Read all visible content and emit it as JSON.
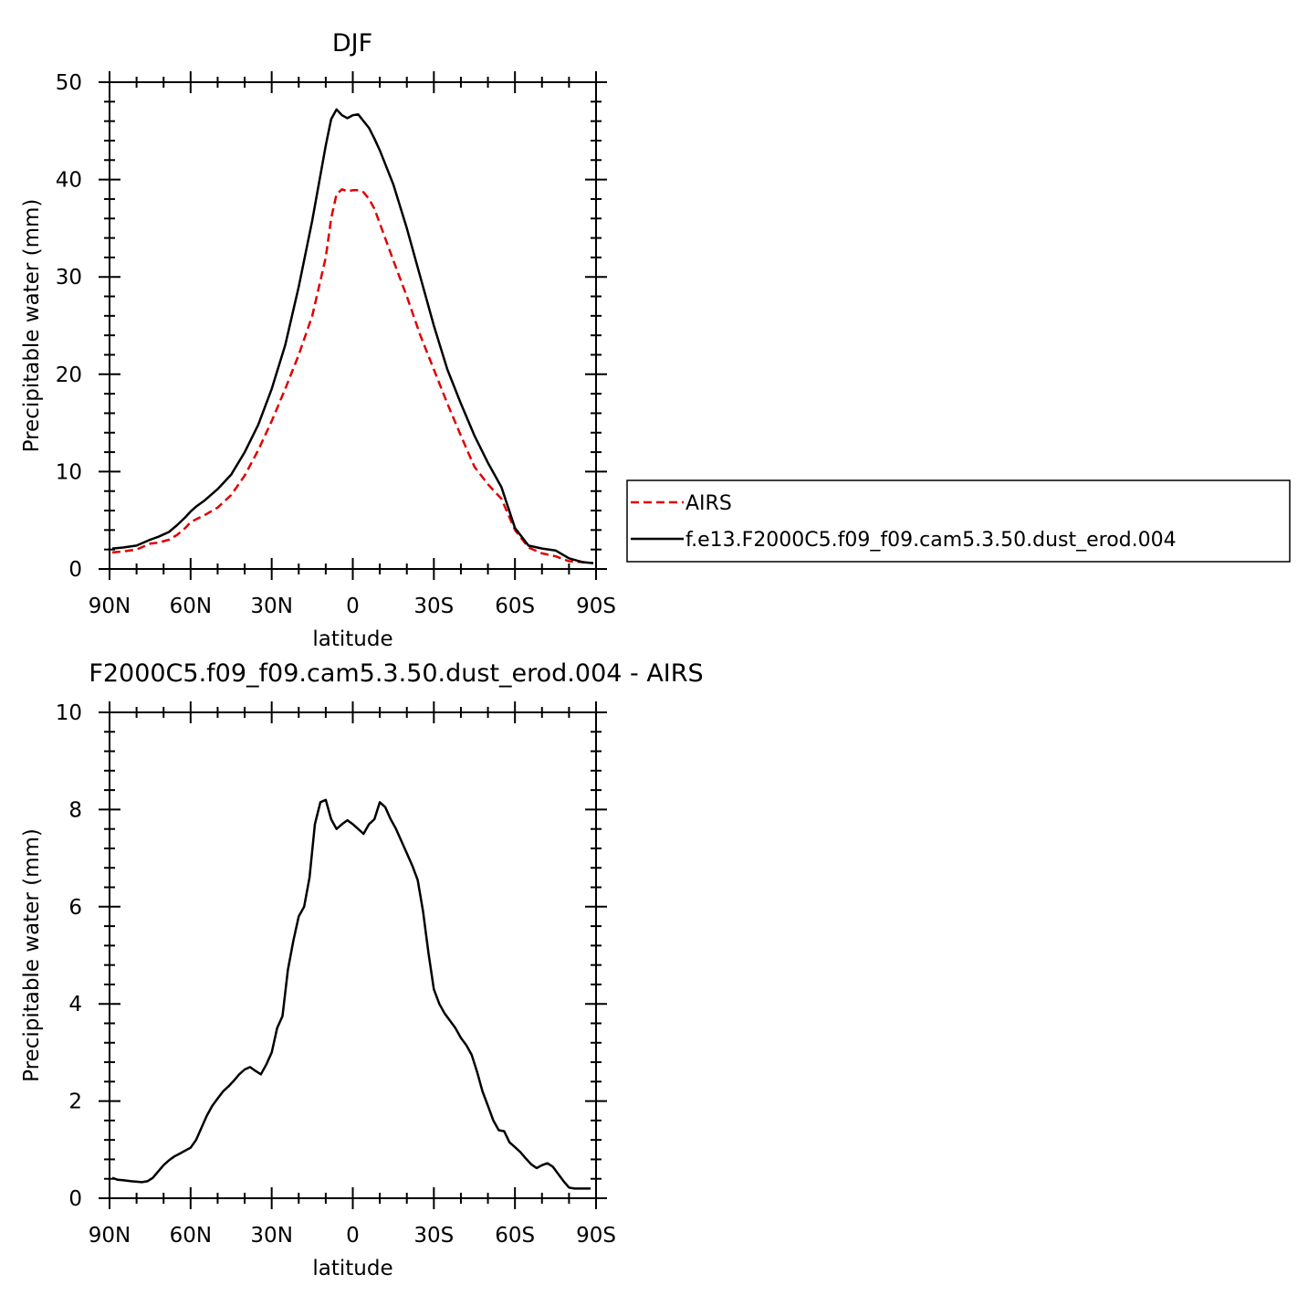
{
  "chart_data": [
    {
      "type": "line",
      "title": "DJF",
      "xlabel": "latitude",
      "ylabel": "Precipitable water (mm)",
      "xlim": [
        -90,
        90
      ],
      "ylim": [
        0,
        50
      ],
      "x_ticks": [
        -90,
        -60,
        -30,
        0,
        30,
        60,
        90
      ],
      "x_tick_labels": [
        "90N",
        "60N",
        "30N",
        "0",
        "30S",
        "60S",
        "90S"
      ],
      "y_ticks": [
        0,
        10,
        20,
        30,
        40,
        50
      ],
      "y_tick_labels": [
        "0",
        "10",
        "20",
        "30",
        "40",
        "50"
      ],
      "legend": {
        "placement": "right",
        "entries": [
          {
            "series": "AIRS",
            "label": "AIRS",
            "color": "#e00000",
            "dash": true
          },
          {
            "series": "model",
            "label": "f.e13.F2000C5.f09_f09.cam5.3.50.dust_erod.004",
            "color": "#000000",
            "dash": false
          }
        ]
      },
      "series": [
        {
          "name": "AIRS",
          "color": "#e00000",
          "dash": true,
          "x": [
            -89,
            -85,
            -80,
            -75,
            -72,
            -68,
            -65,
            -62,
            -60,
            -58,
            -55,
            -50,
            -45,
            -40,
            -35,
            -30,
            -25,
            -20,
            -15,
            -10,
            -8,
            -6,
            -4,
            -2,
            0,
            2,
            4,
            6,
            8,
            10,
            15,
            20,
            25,
            30,
            35,
            40,
            45,
            50,
            55,
            60,
            65,
            70,
            75,
            80,
            85,
            89
          ],
          "values": [
            1.7,
            1.8,
            2.0,
            2.6,
            2.7,
            3.0,
            3.5,
            4.2,
            4.8,
            5.1,
            5.5,
            6.3,
            7.6,
            9.6,
            12.2,
            15.2,
            18.5,
            22.0,
            26.0,
            32.0,
            36.0,
            38.5,
            39.0,
            38.8,
            38.9,
            38.9,
            38.7,
            38.0,
            37.0,
            35.5,
            31.7,
            28.0,
            24.0,
            20.5,
            17.0,
            13.7,
            10.5,
            8.7,
            7.2,
            4.0,
            2.2,
            1.6,
            1.3,
            0.8,
            0.7,
            0.6
          ]
        },
        {
          "name": "f.e13.F2000C5.f09_f09.cam5.3.50.dust_erod.004",
          "color": "#000000",
          "dash": false,
          "x": [
            -89,
            -85,
            -80,
            -75,
            -72,
            -68,
            -65,
            -62,
            -60,
            -58,
            -55,
            -50,
            -45,
            -40,
            -35,
            -30,
            -25,
            -20,
            -15,
            -10,
            -8,
            -6,
            -4,
            -2,
            0,
            2,
            4,
            6,
            8,
            10,
            15,
            20,
            25,
            30,
            35,
            40,
            45,
            50,
            55,
            60,
            65,
            70,
            75,
            80,
            85,
            89
          ],
          "values": [
            2.1,
            2.2,
            2.4,
            3.0,
            3.3,
            3.8,
            4.5,
            5.3,
            5.9,
            6.4,
            7.0,
            8.2,
            9.7,
            12.0,
            14.8,
            18.5,
            23.0,
            29.0,
            35.8,
            43.5,
            46.2,
            47.2,
            46.6,
            46.3,
            46.6,
            46.7,
            46.0,
            45.3,
            44.2,
            43.0,
            39.5,
            35.0,
            30.0,
            25.0,
            20.5,
            17.0,
            13.7,
            10.9,
            8.4,
            4.2,
            2.4,
            2.1,
            1.9,
            1.1,
            0.7,
            0.6
          ]
        }
      ]
    },
    {
      "type": "line",
      "title": "F2000C5.f09_f09.cam5.3.50.dust_erod.004 - AIRS",
      "xlabel": "latitude",
      "ylabel": "Precipitable water (mm)",
      "xlim": [
        -90,
        90
      ],
      "ylim": [
        0,
        10
      ],
      "x_ticks": [
        -90,
        -60,
        -30,
        0,
        30,
        60,
        90
      ],
      "x_tick_labels": [
        "90N",
        "60N",
        "30N",
        "0",
        "30S",
        "60S",
        "90S"
      ],
      "y_ticks": [
        0,
        2,
        4,
        6,
        8,
        10
      ],
      "y_tick_labels": [
        "0",
        "2",
        "4",
        "6",
        "8",
        "10"
      ],
      "series": [
        {
          "name": "difference",
          "color": "#000000",
          "dash": false,
          "x": [
            -89,
            -87,
            -85,
            -82,
            -80,
            -78,
            -76,
            -74,
            -72,
            -70,
            -68,
            -66,
            -64,
            -62,
            -60,
            -58,
            -56,
            -54,
            -52,
            -50,
            -48,
            -46,
            -44,
            -42,
            -40,
            -38,
            -36,
            -34,
            -32,
            -30,
            -28,
            -26,
            -24,
            -22,
            -20,
            -18,
            -16,
            -14,
            -12,
            -10,
            -8,
            -6,
            -4,
            -2,
            0,
            2,
            4,
            6,
            8,
            10,
            12,
            14,
            16,
            18,
            20,
            22,
            24,
            26,
            28,
            30,
            32,
            34,
            36,
            38,
            40,
            42,
            44,
            46,
            48,
            50,
            52,
            54,
            56,
            58,
            60,
            62,
            64,
            66,
            68,
            70,
            72,
            74,
            76,
            78,
            80,
            82,
            84,
            86,
            88
          ],
          "values": [
            0.42,
            0.38,
            0.37,
            0.35,
            0.34,
            0.33,
            0.35,
            0.42,
            0.55,
            0.68,
            0.78,
            0.86,
            0.92,
            0.98,
            1.04,
            1.2,
            1.45,
            1.7,
            1.9,
            2.05,
            2.2,
            2.3,
            2.42,
            2.55,
            2.65,
            2.7,
            2.62,
            2.55,
            2.75,
            3.0,
            3.5,
            3.75,
            4.7,
            5.3,
            5.8,
            6.0,
            6.6,
            7.7,
            8.15,
            8.2,
            7.8,
            7.6,
            7.7,
            7.78,
            7.7,
            7.6,
            7.5,
            7.7,
            7.8,
            8.15,
            8.05,
            7.8,
            7.6,
            7.35,
            7.1,
            6.85,
            6.55,
            5.9,
            5.05,
            4.3,
            4.0,
            3.8,
            3.65,
            3.5,
            3.3,
            3.15,
            2.95,
            2.6,
            2.2,
            1.9,
            1.6,
            1.4,
            1.38,
            1.15,
            1.05,
            0.95,
            0.82,
            0.7,
            0.62,
            0.68,
            0.72,
            0.65,
            0.5,
            0.35,
            0.22,
            0.2,
            0.2,
            0.2,
            0.2
          ]
        }
      ]
    }
  ]
}
